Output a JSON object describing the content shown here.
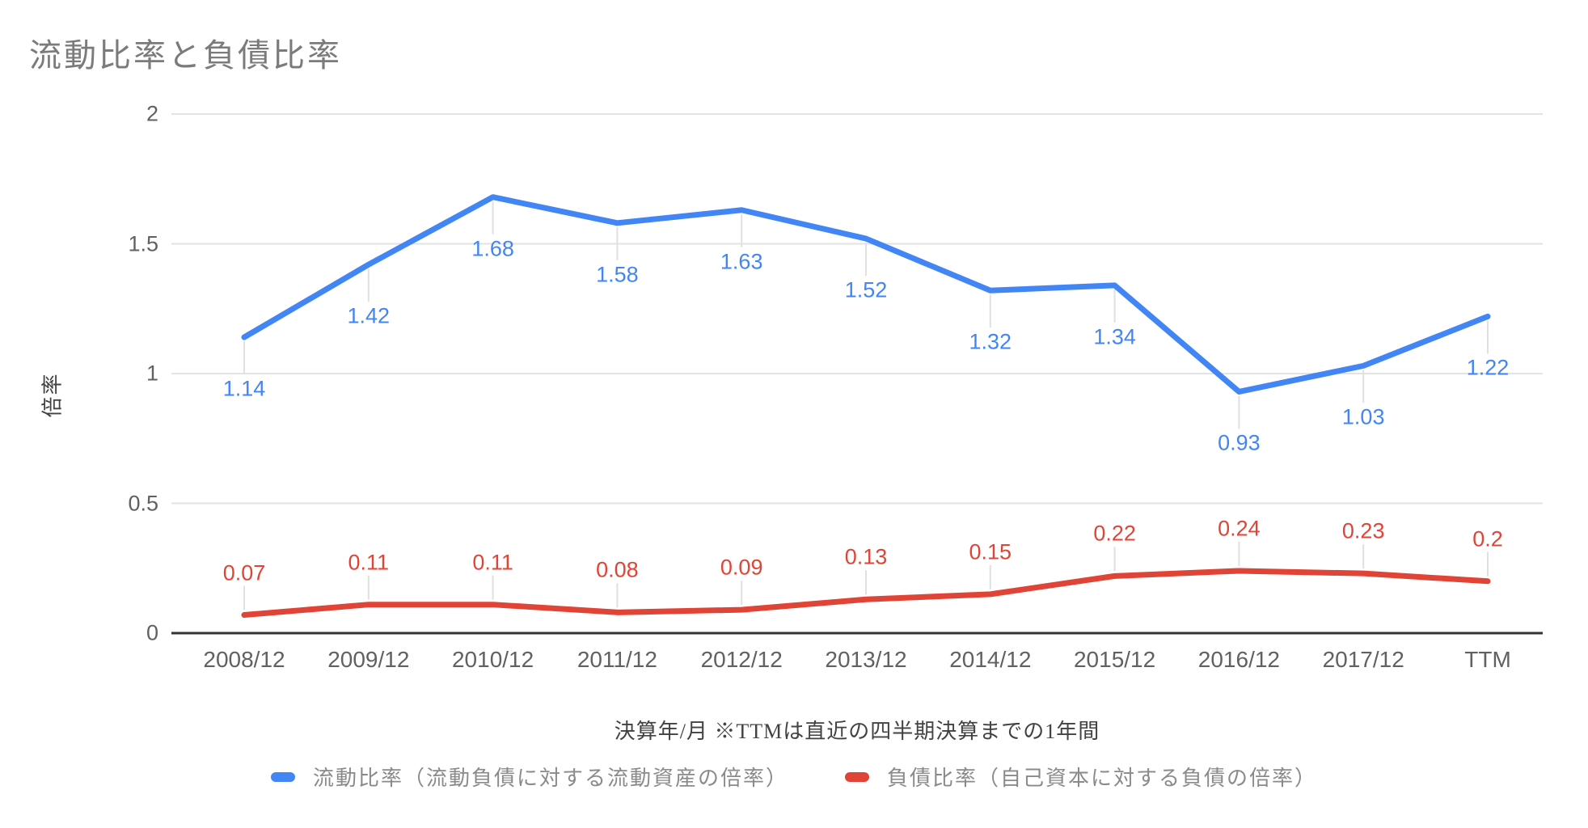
{
  "chart_data": {
    "type": "line",
    "title": "流動比率と負債比率",
    "xlabel": "決算年/月 ※TTMは直近の四半期決算までの1年間",
    "ylabel": "倍率",
    "ylim": [
      0,
      2
    ],
    "yticks": [
      0,
      0.5,
      1,
      1.5,
      2
    ],
    "ytick_labels": [
      "0",
      "0.5",
      "1",
      "1.5",
      "2"
    ],
    "grid": true,
    "legend_position": "bottom",
    "categories": [
      "2008/12",
      "2009/12",
      "2010/12",
      "2011/12",
      "2012/12",
      "2013/12",
      "2014/12",
      "2015/12",
      "2016/12",
      "2017/12",
      "TTM"
    ],
    "series": [
      {
        "name": "流動比率（流動負債に対する流動資産の倍率）",
        "color": "#4285f4",
        "values": [
          1.14,
          1.42,
          1.68,
          1.58,
          1.63,
          1.52,
          1.32,
          1.34,
          0.93,
          1.03,
          1.22
        ],
        "value_labels": [
          "1.14",
          "1.42",
          "1.68",
          "1.58",
          "1.63",
          "1.52",
          "1.32",
          "1.34",
          "0.93",
          "1.03",
          "1.22"
        ],
        "label_side": "below"
      },
      {
        "name": "負債比率（自己資本に対する負債の倍率）",
        "color": "#e04436",
        "values": [
          0.07,
          0.11,
          0.11,
          0.08,
          0.09,
          0.13,
          0.15,
          0.22,
          0.24,
          0.23,
          0.2
        ],
        "value_labels": [
          "0.07",
          "0.11",
          "0.11",
          "0.08",
          "0.09",
          "0.13",
          "0.15",
          "0.22",
          "0.24",
          "0.23",
          "0.2"
        ],
        "label_side": "above"
      }
    ],
    "colors": {
      "gridline": "#e3e3e3",
      "zero_axis": "#333333",
      "stem": "#e0e0e0",
      "tick_text": "#616161",
      "title_text": "#7b7b7b"
    }
  }
}
